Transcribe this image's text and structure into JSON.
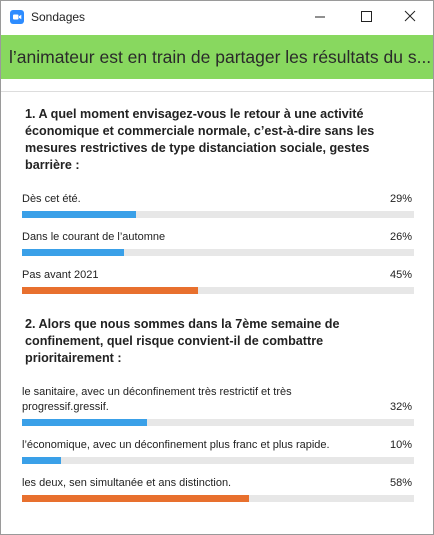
{
  "window": {
    "title": "Sondages"
  },
  "banner": "l’animateur est en train de partager les résultats du s...",
  "questions": [
    {
      "question": "1. A quel moment envisagez-vous le retour à une activité économique et commerciale normale, c’est-à-dire sans les mesures restrictives de type distanciation sociale, gestes barrière :",
      "options": [
        {
          "label": "Dès cet été.",
          "value": 29,
          "value_label": "29%",
          "color": "#3aa0e8"
        },
        {
          "label": "Dans le courant de l’automne",
          "value": 26,
          "value_label": "26%",
          "color": "#3aa0e8"
        },
        {
          "label": "Pas avant 2021",
          "value": 45,
          "value_label": "45%",
          "color": "#e8702e"
        }
      ]
    },
    {
      "question": "2. Alors que nous sommes dans la 7ème semaine de confinement, quel risque convient-il de combattre prioritairement :",
      "options": [
        {
          "label": "le sanitaire, avec un déconfinement très restrictif et très progressif.gressif.",
          "value": 32,
          "value_label": "32%",
          "color": "#3aa0e8"
        },
        {
          "label": "l’économique, avec un déconfinement plus franc et plus rapide.",
          "value": 10,
          "value_label": "10%",
          "color": "#3aa0e8"
        },
        {
          "label": "les deux, sen simultanée et ans distinction.",
          "value": 58,
          "value_label": "58%",
          "color": "#e8702e"
        }
      ]
    }
  ]
}
